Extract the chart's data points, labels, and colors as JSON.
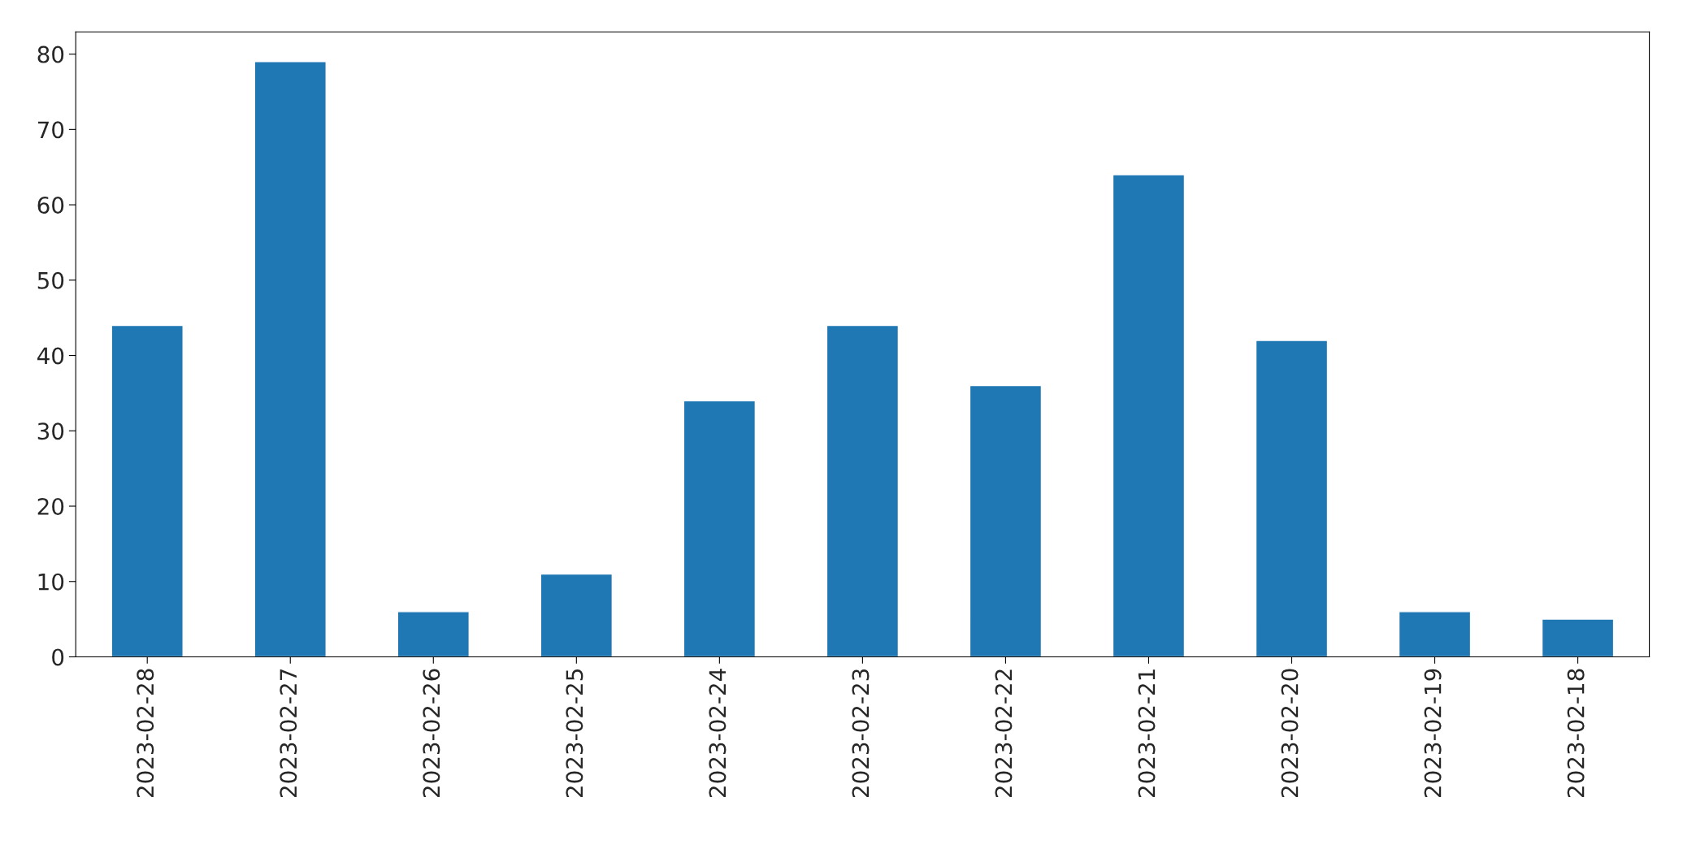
{
  "chart_data": {
    "type": "bar",
    "categories": [
      "2023-02-28",
      "2023-02-27",
      "2023-02-26",
      "2023-02-25",
      "2023-02-24",
      "2023-02-23",
      "2023-02-22",
      "2023-02-21",
      "2023-02-20",
      "2023-02-19",
      "2023-02-18"
    ],
    "values": [
      44,
      79,
      6,
      11,
      34,
      44,
      36,
      64,
      42,
      6,
      5
    ],
    "color": "#1f77b4",
    "ylim": [
      0,
      82.95
    ],
    "yticks": [
      0,
      10,
      20,
      30,
      40,
      50,
      60,
      70,
      80
    ],
    "grid": false,
    "legend": false
  }
}
